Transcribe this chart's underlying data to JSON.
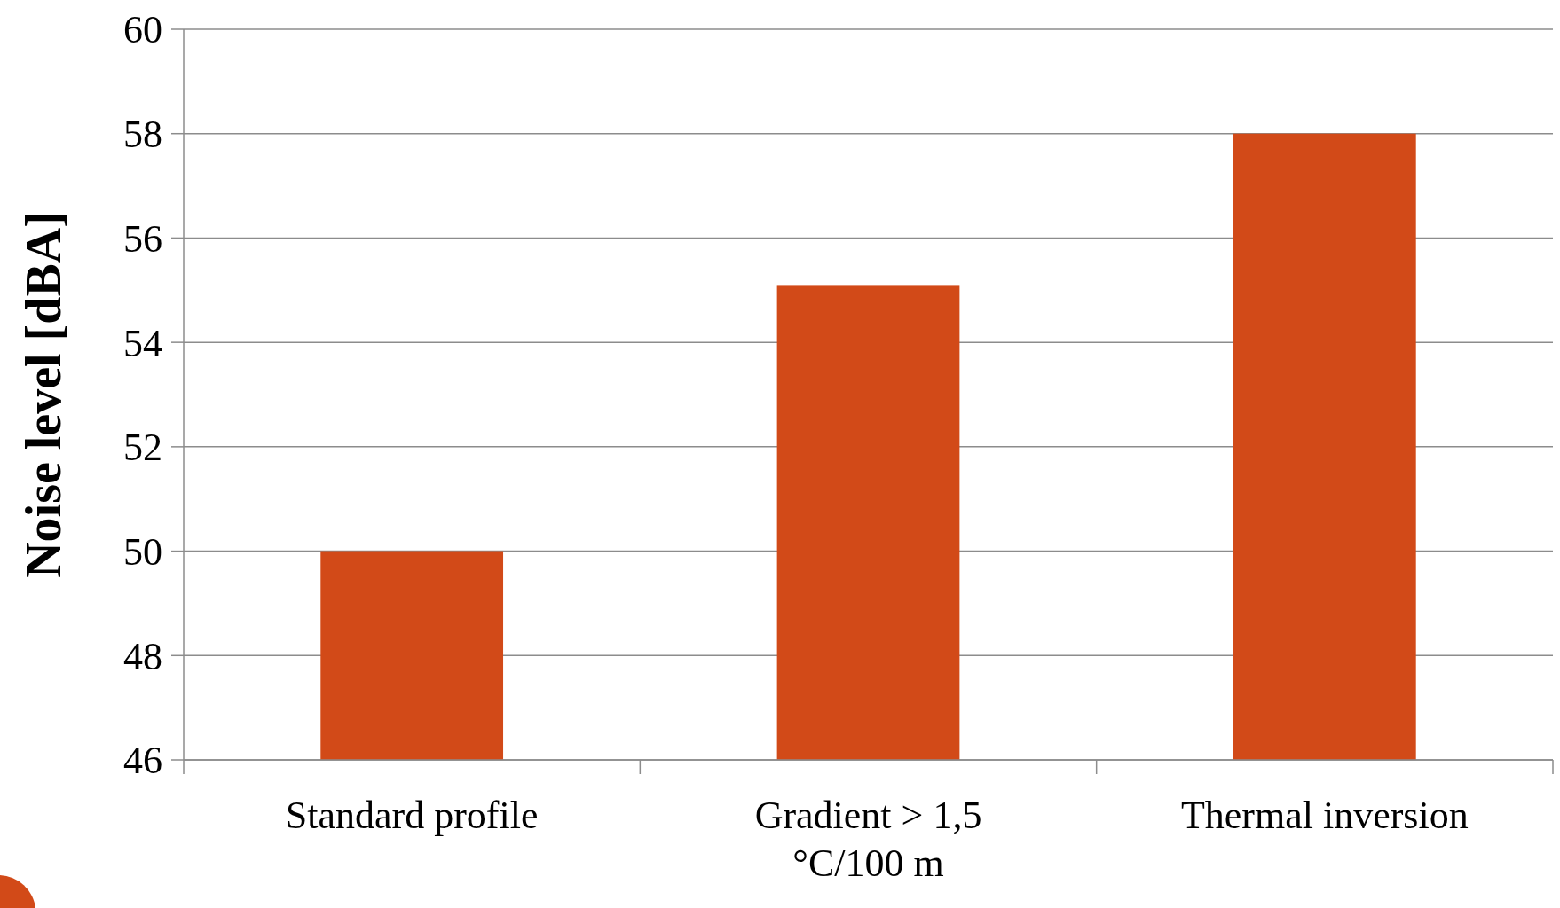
{
  "chart_data": {
    "type": "bar",
    "ylabel": "Noise level  [dBA]",
    "categories": [
      "Standard profile",
      "Gradient > 1,5 °C/100 m",
      "Thermal inversion"
    ],
    "values": [
      50,
      55.1,
      58
    ],
    "color": "#d24a18",
    "ylim": [
      46,
      60
    ],
    "yticks": [
      46,
      48,
      50,
      52,
      54,
      56,
      58,
      60
    ],
    "grid": "y"
  }
}
